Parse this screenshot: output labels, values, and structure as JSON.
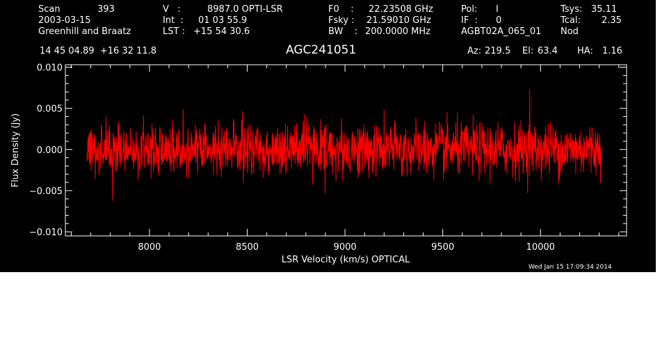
{
  "header": {
    "scan_label": "Scan",
    "scan_value": "393",
    "date": "2003-03-15",
    "observers": "Greenhill and Braatz",
    "v_label": "V   :",
    "v_value": "8987.0 OPTI-LSR",
    "int_label": "Int  :",
    "int_value": "01 03 55.9",
    "lst_label": "LST :",
    "lst_value": "+15 54 30.6",
    "f0_label": "F0    :",
    "f0_value": "22.23508 GHz",
    "fsky_label": "Fsky :",
    "fsky_value": "21.59010 GHz",
    "bw_label": "BW    :",
    "bw_value": "200.0000 MHz",
    "pol_label": "Pol:",
    "pol_value": "I",
    "if_label": "IF  :",
    "if_value": "0",
    "project": "AGBT02A_065_01",
    "tsys_label": "Tsys:",
    "tsys_value": "35.11",
    "tcal_label": "Tcal:",
    "tcal_value": "2.35",
    "mode": "Nod",
    "coords": "14 45 04.89  +16 32 11.8",
    "source": "AGC241051",
    "az_label": "Az:",
    "az_value": "219.5",
    "el_label": "El:",
    "el_value": "63.4",
    "ha_label": "HA:",
    "ha_value": "1.16",
    "timestamp": "Wed Jan 15 17:09:34 2014"
  },
  "colors": {
    "background": "#000000",
    "axes": "#ffffff",
    "series": "#ff0000"
  },
  "chart_data": {
    "type": "line",
    "title": "AGC241051",
    "xlabel": "LSR Velocity (km/s) OPTICAL",
    "ylabel": "Flux Density (Jy)",
    "xlim": [
      7570,
      10440
    ],
    "ylim": [
      -0.0105,
      0.0103
    ],
    "xticks": [
      8000,
      8500,
      9000,
      9500,
      10000
    ],
    "xtick_labels": [
      "8000",
      "8500",
      "9000",
      "9500",
      "10000"
    ],
    "yticks": [
      -0.01,
      -0.005,
      0.0,
      0.005,
      0.01
    ],
    "ytick_labels": [
      "−0.010",
      "−0.005",
      "0.000",
      "0.005",
      "0.010"
    ],
    "grid": false,
    "series": [
      {
        "x_start": 7680,
        "x_end": 10310,
        "y_center": 0.0,
        "y_rms": 0.0016,
        "y_min_observed": -0.0062,
        "y_max_observed": 0.0073,
        "y_max_observed_x": 9945
      }
    ]
  }
}
